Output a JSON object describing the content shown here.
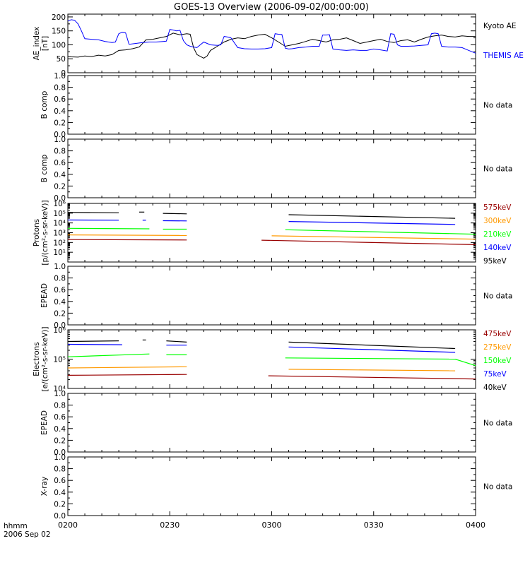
{
  "title": "GOES-13 Overview (2006-09-02/00:00:00)",
  "time_axis": {
    "corner_label_1": "hhmm",
    "corner_label_2": "2006 Sep 02",
    "ticks": [
      "0200",
      "0230",
      "0300",
      "0330",
      "0400"
    ],
    "range_minutes": [
      0,
      120
    ]
  },
  "colors": {
    "black": "#000000",
    "blue": "#0000ff",
    "green": "#00ff00",
    "orange": "#ff9900",
    "darkred": "#990000"
  },
  "chart_data": [
    {
      "type": "line",
      "panel": "ae",
      "ylabel": "AE_index\n[nT]",
      "ylabel_lines": [
        "AE_index",
        "[nT]"
      ],
      "ylim": [
        0,
        210
      ],
      "yticks": [
        "0",
        "50",
        "100",
        "150",
        "200"
      ],
      "ytick_values": [
        0,
        50,
        100,
        150,
        200
      ],
      "series": [
        {
          "name": "Kyoto AE",
          "color": "#000000",
          "x": [
            0,
            1,
            3,
            5,
            7,
            9,
            11,
            13,
            15,
            17,
            19,
            21,
            23,
            25,
            27,
            29,
            31,
            33,
            35,
            36,
            37,
            38,
            40,
            41,
            42,
            44,
            46,
            48,
            50,
            52,
            54,
            56,
            58,
            60,
            62,
            64,
            66,
            68,
            70,
            72,
            74,
            76,
            78,
            80,
            82,
            84,
            86,
            88,
            90,
            92,
            94,
            96,
            98,
            100,
            102,
            104,
            106,
            108,
            110,
            112,
            114,
            116,
            118,
            120
          ],
          "y": [
            58,
            57,
            56,
            60,
            58,
            63,
            60,
            65,
            80,
            82,
            86,
            92,
            118,
            120,
            125,
            130,
            142,
            136,
            140,
            138,
            90,
            65,
            52,
            60,
            80,
            95,
            110,
            120,
            125,
            122,
            130,
            135,
            138,
            125,
            110,
            95,
            100,
            105,
            112,
            120,
            115,
            110,
            118,
            120,
            125,
            115,
            105,
            110,
            115,
            120,
            112,
            108,
            115,
            118,
            110,
            120,
            128,
            132,
            135,
            130,
            128,
            132,
            130,
            130
          ]
        },
        {
          "name": "THEMIS AE",
          "color": "#0000ff",
          "x": [
            0,
            1,
            2,
            3,
            4,
            5,
            7,
            9,
            11,
            13,
            14,
            15,
            16,
            17,
            18,
            20,
            22,
            24,
            26,
            28,
            29,
            30,
            31,
            32,
            33,
            34,
            35,
            36,
            37,
            38,
            40,
            42,
            44,
            45,
            46,
            47,
            48,
            50,
            52,
            54,
            56,
            58,
            60,
            61,
            62,
            63,
            64,
            65,
            66,
            68,
            70,
            72,
            74,
            75,
            76,
            77,
            78,
            80,
            82,
            84,
            86,
            88,
            90,
            92,
            94,
            95,
            96,
            97,
            98,
            100,
            102,
            104,
            106,
            107,
            108,
            109,
            110,
            112,
            114,
            116,
            118,
            120
          ],
          "y": [
            185,
            190,
            188,
            175,
            150,
            122,
            120,
            118,
            112,
            108,
            110,
            140,
            145,
            143,
            102,
            105,
            108,
            110,
            110,
            112,
            113,
            155,
            153,
            150,
            152,
            115,
            100,
            95,
            92,
            90,
            110,
            100,
            98,
            100,
            130,
            128,
            125,
            90,
            86,
            85,
            85,
            86,
            90,
            140,
            138,
            137,
            88,
            85,
            86,
            90,
            92,
            95,
            95,
            135,
            135,
            136,
            85,
            82,
            80,
            82,
            80,
            80,
            85,
            82,
            78,
            140,
            138,
            100,
            95,
            95,
            96,
            98,
            100,
            140,
            142,
            140,
            95,
            92,
            92,
            90,
            80,
            70
          ]
        }
      ],
      "legend": [
        {
          "label": "Kyoto AE",
          "color": "#000000"
        },
        {
          "label": "THEMIS AE",
          "color": "#0000ff"
        }
      ]
    },
    {
      "type": "line",
      "panel": "bcomp1",
      "ylabel": "B comp",
      "ylabel_lines": [
        "B comp"
      ],
      "ylim": [
        0,
        1
      ],
      "yticks": [
        "0.0",
        "0.2",
        "0.4",
        "0.6",
        "0.8",
        "1.0"
      ],
      "ytick_values": [
        0,
        0.2,
        0.4,
        0.6,
        0.8,
        1.0
      ],
      "series": [],
      "legend": [
        {
          "label": "No data",
          "color": "#000000"
        }
      ]
    },
    {
      "type": "line",
      "panel": "bcomp2",
      "ylabel": "B comp",
      "ylabel_lines": [
        "B comp"
      ],
      "ylim": [
        0,
        1
      ],
      "yticks": [
        "0.0",
        "0.2",
        "0.4",
        "0.6",
        "0.8",
        "1.0"
      ],
      "ytick_values": [
        0,
        0.2,
        0.4,
        0.6,
        0.8,
        1.0
      ],
      "series": [],
      "legend": [
        {
          "label": "No data",
          "color": "#000000"
        }
      ]
    },
    {
      "type": "line",
      "panel": "protons",
      "ylabel": "Protons\n[p/(cm2-s-sr-keV)]",
      "ylabel_lines": [
        "Protons",
        "[p/(cm²-s-sr-keV)]"
      ],
      "ylim": [
        1,
        1000000
      ],
      "yscale": "log",
      "yticks": [
        "10¹",
        "10²",
        "10³",
        "10⁴",
        "10⁵",
        "10⁶"
      ],
      "ytick_values": [
        10,
        100,
        1000,
        10000,
        100000,
        1000000
      ],
      "series": [
        {
          "name": "95keV",
          "color": "#000000",
          "segments": [
            {
              "x": [
                0,
                15
              ],
              "y": [
                120000,
                110000
              ]
            },
            {
              "x": [
                21,
                22.5
              ],
              "y": [
                130000,
                130000
              ]
            },
            {
              "x": [
                28,
                35
              ],
              "y": [
                95000,
                85000
              ]
            },
            {
              "x": [
                65,
                114
              ],
              "y": [
                70000,
                30000
              ]
            }
          ]
        },
        {
          "name": "140keV",
          "color": "#0000ff",
          "segments": [
            {
              "x": [
                0,
                15
              ],
              "y": [
                20000,
                19000
              ]
            },
            {
              "x": [
                22,
                23
              ],
              "y": [
                19000,
                19000
              ]
            },
            {
              "x": [
                28,
                35
              ],
              "y": [
                17000,
                16000
              ]
            },
            {
              "x": [
                65,
                114
              ],
              "y": [
                14000,
                7000
              ]
            }
          ]
        },
        {
          "name": "210keV",
          "color": "#00ff00",
          "segments": [
            {
              "x": [
                0,
                24
              ],
              "y": [
                2800,
                2500
              ]
            },
            {
              "x": [
                28,
                35
              ],
              "y": [
                2300,
                2300
              ]
            },
            {
              "x": [
                64,
                120
              ],
              "y": [
                2000,
                700
              ]
            }
          ]
        },
        {
          "name": "300keV",
          "color": "#ff9900",
          "segments": [
            {
              "x": [
                0,
                35
              ],
              "y": [
                600,
                520
              ]
            },
            {
              "x": [
                60,
                120
              ],
              "y": [
                480,
                220
              ]
            }
          ]
        },
        {
          "name": "575keV",
          "color": "#990000",
          "segments": [
            {
              "x": [
                0,
                35
              ],
              "y": [
                200,
                180
              ]
            },
            {
              "x": [
                57,
                120
              ],
              "y": [
                170,
                60
              ]
            }
          ]
        }
      ],
      "legend": [
        {
          "label": "575keV",
          "color": "#990000"
        },
        {
          "label": "300keV",
          "color": "#ff9900"
        },
        {
          "label": "210keV",
          "color": "#00ff00"
        },
        {
          "label": "140keV",
          "color": "#0000ff"
        },
        {
          "label": "95keV",
          "color": "#000000"
        }
      ]
    },
    {
      "type": "line",
      "panel": "epead1",
      "ylabel": "EPEAD",
      "ylabel_lines": [
        "EPEAD"
      ],
      "ylim": [
        0,
        1
      ],
      "yticks": [
        "0.0",
        "0.2",
        "0.4",
        "0.6",
        "0.8",
        "1.0"
      ],
      "ytick_values": [
        0,
        0.2,
        0.4,
        0.6,
        0.8,
        1.0
      ],
      "series": [],
      "legend": [
        {
          "label": "No data",
          "color": "#000000"
        }
      ]
    },
    {
      "type": "line",
      "panel": "electrons",
      "ylabel": "Electrons\n[e/(cm2-s-sr-keV)]",
      "ylabel_lines": [
        "Electrons",
        "[e/(cm²-s-sr-keV)]"
      ],
      "ylim": [
        10000,
        1000000
      ],
      "yscale": "log",
      "yticks": [
        "10⁴",
        "10⁵",
        "10⁶"
      ],
      "ytick_values": [
        10000,
        100000,
        1000000
      ],
      "series": [
        {
          "name": "40keV",
          "color": "#000000",
          "segments": [
            {
              "x": [
                0,
                15
              ],
              "y": [
                400000,
                420000
              ]
            },
            {
              "x": [
                22,
                23
              ],
              "y": [
                450000,
                450000
              ]
            },
            {
              "x": [
                29,
                35
              ],
              "y": [
                420000,
                380000
              ]
            },
            {
              "x": [
                65,
                114
              ],
              "y": [
                380000,
                230000
              ]
            }
          ]
        },
        {
          "name": "75keV",
          "color": "#0000ff",
          "segments": [
            {
              "x": [
                0,
                16
              ],
              "y": [
                320000,
                310000
              ]
            },
            {
              "x": [
                29,
                35
              ],
              "y": [
                300000,
                300000
              ]
            },
            {
              "x": [
                65,
                114
              ],
              "y": [
                260000,
                170000
              ]
            }
          ]
        },
        {
          "name": "150keV",
          "color": "#00ff00",
          "segments": [
            {
              "x": [
                0,
                24
              ],
              "y": [
                120000,
                150000
              ]
            },
            {
              "x": [
                29,
                35
              ],
              "y": [
                140000,
                140000
              ]
            },
            {
              "x": [
                64,
                114
              ],
              "y": [
                110000,
                100000
              ]
            },
            {
              "x": [
                114,
                120
              ],
              "y": [
                100000,
                60000
              ]
            }
          ]
        },
        {
          "name": "275keV",
          "color": "#ff9900",
          "segments": [
            {
              "x": [
                0,
                35
              ],
              "y": [
                50000,
                55000
              ]
            },
            {
              "x": [
                65,
                114
              ],
              "y": [
                45000,
                40000
              ]
            }
          ]
        },
        {
          "name": "475keV",
          "color": "#990000",
          "segments": [
            {
              "x": [
                0,
                35
              ],
              "y": [
                28000,
                30000
              ]
            },
            {
              "x": [
                59,
                120
              ],
              "y": [
                27000,
                21000
              ]
            }
          ]
        }
      ],
      "legend": [
        {
          "label": "475keV",
          "color": "#990000"
        },
        {
          "label": "275keV",
          "color": "#ff9900"
        },
        {
          "label": "150keV",
          "color": "#00ff00"
        },
        {
          "label": "75keV",
          "color": "#0000ff"
        },
        {
          "label": "40keV",
          "color": "#000000"
        }
      ]
    },
    {
      "type": "line",
      "panel": "epead2",
      "ylabel": "EPEAD",
      "ylabel_lines": [
        "EPEAD"
      ],
      "ylim": [
        0,
        1
      ],
      "yticks": [
        "0.0",
        "0.2",
        "0.4",
        "0.6",
        "0.8",
        "1.0"
      ],
      "ytick_values": [
        0,
        0.2,
        0.4,
        0.6,
        0.8,
        1.0
      ],
      "series": [],
      "legend": [
        {
          "label": "No data",
          "color": "#000000"
        }
      ]
    },
    {
      "type": "line",
      "panel": "xray",
      "ylabel": "X-ray",
      "ylabel_lines": [
        "X-ray"
      ],
      "ylim": [
        0,
        1
      ],
      "yticks": [
        "0.0",
        "0.2",
        "0.4",
        "0.6",
        "0.8",
        "1.0"
      ],
      "ytick_values": [
        0,
        0.2,
        0.4,
        0.6,
        0.8,
        1.0
      ],
      "series": [],
      "legend": [
        {
          "label": "No data",
          "color": "#000000"
        }
      ]
    }
  ]
}
